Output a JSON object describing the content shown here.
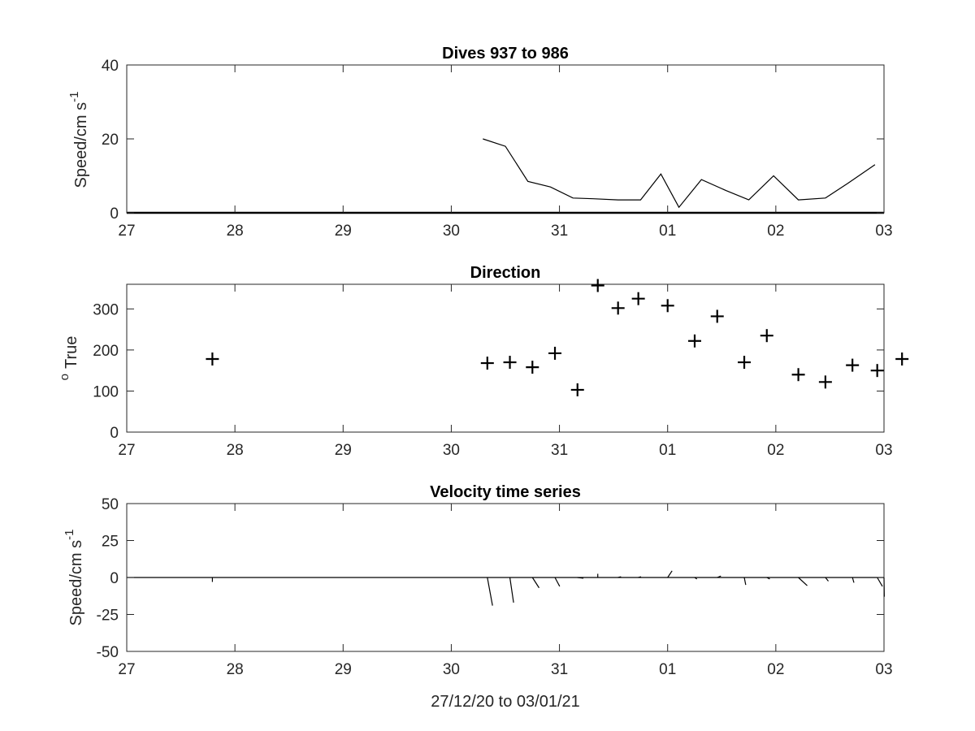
{
  "chart_data": [
    {
      "type": "line",
      "title": "Dives 937 to 986",
      "ylabel": "Speed/cm s",
      "ylabel_sup": "-1",
      "xlim": [
        "2020-12-27",
        "2021-01-03"
      ],
      "ylim": [
        0,
        40
      ],
      "xticks": [
        "27",
        "28",
        "29",
        "30",
        "31",
        "01",
        "02",
        "03"
      ],
      "yticks": [
        "0",
        "20",
        "40"
      ],
      "grid": false,
      "zero_line_x": [
        "2020-12-27",
        "2021-01-03"
      ],
      "x": [
        "2020-12-30 07:00",
        "2020-12-30 12:00",
        "2020-12-30 17:00",
        "2020-12-30 22:00",
        "2020-12-31 03:00",
        "2020-12-31 07:30",
        "2020-12-31 13:00",
        "2020-12-31 18:00",
        "2020-12-31 22:30",
        "2021-01-01 02:30",
        "2021-01-01 07:30",
        "2021-01-01 13:00",
        "2021-01-01 18:00",
        "2021-01-01 23:30",
        "2021-01-02 05:00",
        "2021-01-02 11:00",
        "2021-01-02 16:00",
        "2021-01-02 22:00"
      ],
      "values": [
        20,
        18,
        8.5,
        7,
        4,
        3.8,
        3.5,
        3.5,
        10.5,
        1.5,
        9,
        6,
        3.5,
        10,
        3.5,
        4,
        8,
        13
      ]
    },
    {
      "type": "scatter",
      "title": "Direction",
      "ylabel": "True",
      "ylabel_sup": "o",
      "xlim": [
        "2020-12-27",
        "2021-01-03"
      ],
      "ylim": [
        0,
        360
      ],
      "xticks": [
        "27",
        "28",
        "29",
        "30",
        "31",
        "01",
        "02",
        "03"
      ],
      "yticks": [
        "0",
        "100",
        "200",
        "300"
      ],
      "grid": false,
      "marker": "+",
      "x": [
        "2020-12-27 19:00",
        "2020-12-30 08:00",
        "2020-12-30 13:00",
        "2020-12-30 18:00",
        "2020-12-30 23:00",
        "2020-12-31 04:00",
        "2020-12-31 08:30",
        "2020-12-31 13:00",
        "2020-12-31 17:30",
        "2021-01-01 00:00",
        "2021-01-01 06:00",
        "2021-01-01 11:00",
        "2021-01-01 17:00",
        "2021-01-01 22:00",
        "2021-01-02 05:00",
        "2021-01-02 11:00",
        "2021-01-02 17:00",
        "2021-01-02 22:30",
        "2021-01-03 04:00"
      ],
      "values": [
        178,
        168,
        170,
        158,
        192,
        103,
        357,
        302,
        325,
        308,
        222,
        282,
        170,
        235,
        140,
        122,
        163,
        150,
        178
      ]
    },
    {
      "type": "quiver",
      "title": "Velocity time series",
      "ylabel": "Speed/cm s",
      "ylabel_sup": "-1",
      "xlabel": "27/12/20 to 03/01/21",
      "xlim": [
        "2020-12-27",
        "2021-01-03"
      ],
      "ylim": [
        -50,
        50
      ],
      "xticks": [
        "27",
        "28",
        "29",
        "30",
        "31",
        "01",
        "02",
        "03"
      ],
      "yticks": [
        "-50",
        "-25",
        "0",
        "25",
        "50"
      ],
      "grid": false,
      "zero_line_x": [
        "2020-12-27",
        "2021-01-03"
      ],
      "x": [
        "2020-12-27 19:00",
        "2020-12-30 08:00",
        "2020-12-30 13:00",
        "2020-12-30 18:00",
        "2020-12-30 23:00",
        "2020-12-31 04:00",
        "2020-12-31 08:30",
        "2020-12-31 13:00",
        "2020-12-31 17:30",
        "2021-01-01 00:00",
        "2021-01-01 06:00",
        "2021-01-01 11:00",
        "2021-01-01 17:00",
        "2021-01-01 22:00",
        "2021-01-02 05:00",
        "2021-01-02 11:00",
        "2021-01-02 17:00",
        "2021-01-02 22:30",
        "2021-01-03 00:00"
      ],
      "u": [
        0,
        3.5,
        2.5,
        4.5,
        3.2,
        4,
        0,
        2,
        1.8,
        3,
        1.5,
        2.5,
        1,
        2,
        6,
        2,
        1,
        3.5,
        0.2
      ],
      "v": [
        -3,
        -19,
        -17,
        -7,
        -6,
        -0.5,
        2.5,
        0.5,
        0.5,
        4.5,
        -1,
        1,
        -5,
        -1,
        -5.5,
        -2.5,
        -3.5,
        -6,
        -13
      ]
    }
  ]
}
